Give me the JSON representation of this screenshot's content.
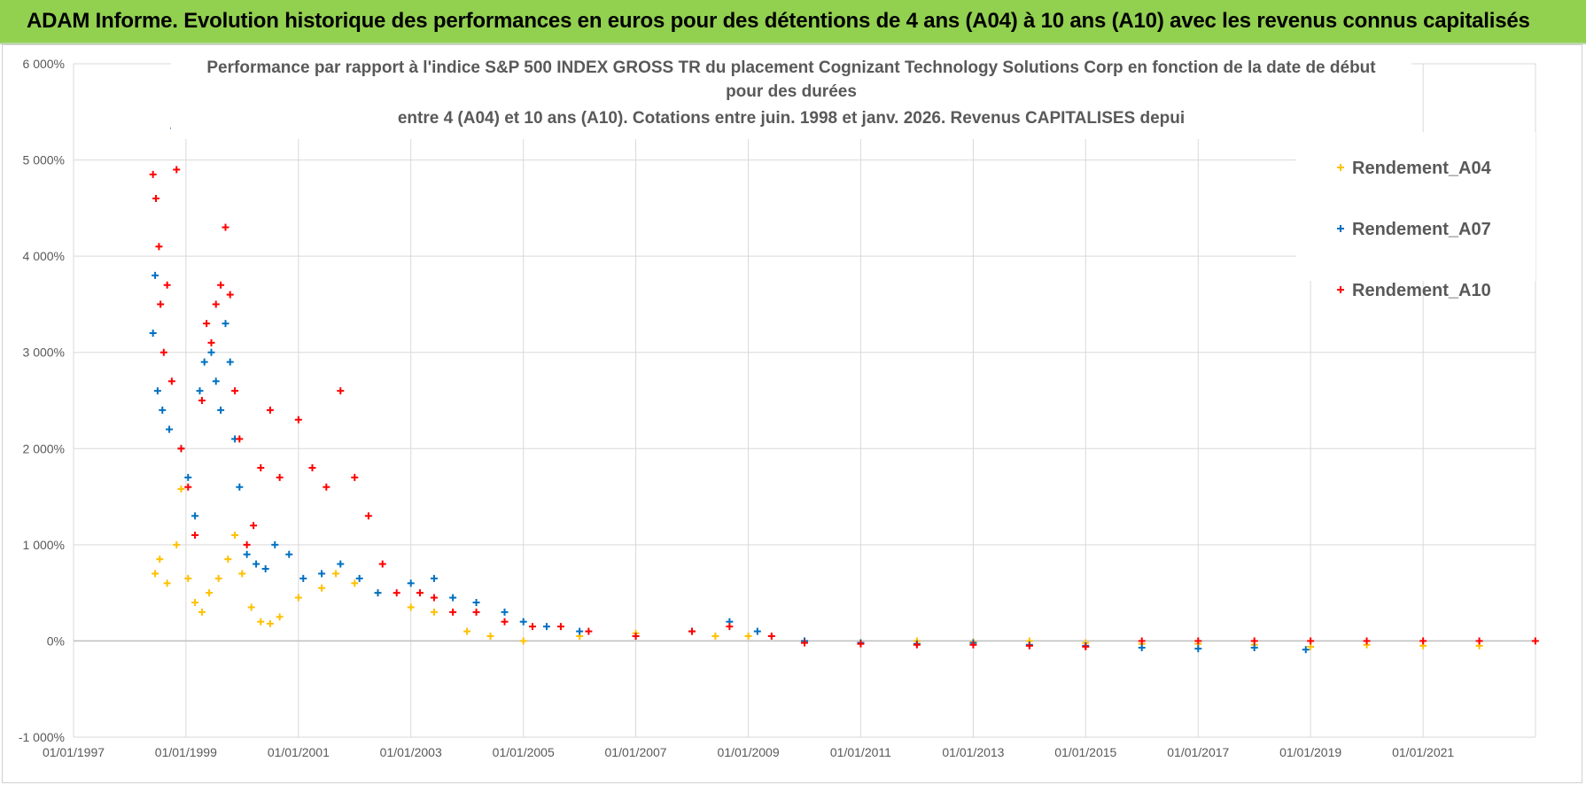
{
  "banner": {
    "title": "ADAM Informe. Evolution historique des performances en euros pour des détentions de 4 ans (A04) à 10 ans (A10) avec les revenus connus capitalisés"
  },
  "colors": {
    "banner": "#92d050",
    "A04": "#ffc000",
    "A07": "#0070c0",
    "A10": "#ff0000",
    "grid": "#d9d9d9",
    "text": "#595959"
  },
  "chart_data": {
    "type": "scatter",
    "title_lines": [
      "Performance par rapport à l'indice S&P 500 INDEX GROSS TR  du placement Cognizant Technology Solutions Corp en fonction de la date de début",
      "pour des durées",
      "entre 4 (A04) et 10 ans (A10). Cotations entre juin. 1998 et janv. 2026. Revenus CAPITALISES depui"
    ],
    "xlabel": "",
    "ylabel": "",
    "x_tick_labels": [
      "01/01/1997",
      "01/01/1999",
      "01/01/2001",
      "01/01/2003",
      "01/01/2005",
      "01/01/2007",
      "01/01/2009",
      "01/01/2011",
      "01/01/2013",
      "01/01/2015",
      "01/01/2017",
      "01/01/2019",
      "01/01/2021"
    ],
    "xlim": [
      "1997-01-01",
      "2023-01-01"
    ],
    "y_tick_labels": [
      "-1 000%",
      "0%",
      "1 000%",
      "2 000%",
      "3 000%",
      "4 000%",
      "5 000%",
      "6 000%"
    ],
    "ylim": [
      -1000,
      6000
    ],
    "grid": true,
    "legend_position": "top-right",
    "marker": "+",
    "series": [
      {
        "name": "Rendement_A04",
        "color": "#ffc000",
        "points": [
          [
            "1998-06-15",
            700
          ],
          [
            "1998-07-15",
            850
          ],
          [
            "1998-09-01",
            600
          ],
          [
            "1998-11-01",
            1000
          ],
          [
            "1998-12-01",
            1580
          ],
          [
            "1999-01-15",
            650
          ],
          [
            "1999-03-01",
            400
          ],
          [
            "1999-04-15",
            300
          ],
          [
            "1999-06-01",
            500
          ],
          [
            "1999-08-01",
            650
          ],
          [
            "1999-10-01",
            850
          ],
          [
            "1999-11-15",
            1100
          ],
          [
            "2000-01-01",
            700
          ],
          [
            "2000-03-01",
            350
          ],
          [
            "2000-05-01",
            200
          ],
          [
            "2000-07-01",
            180
          ],
          [
            "2000-09-01",
            250
          ],
          [
            "2001-01-01",
            450
          ],
          [
            "2001-06-01",
            550
          ],
          [
            "2001-09-01",
            700
          ],
          [
            "2002-01-01",
            600
          ],
          [
            "2002-06-01",
            500
          ],
          [
            "2003-01-01",
            350
          ],
          [
            "2003-06-01",
            300
          ],
          [
            "2004-01-01",
            100
          ],
          [
            "2004-06-01",
            50
          ],
          [
            "2005-01-01",
            0
          ],
          [
            "2006-01-01",
            50
          ],
          [
            "2007-01-01",
            80
          ],
          [
            "2008-01-01",
            100
          ],
          [
            "2008-06-01",
            50
          ],
          [
            "2009-01-01",
            50
          ],
          [
            "2010-01-01",
            0
          ],
          [
            "2011-01-01",
            -20
          ],
          [
            "2012-01-01",
            0
          ],
          [
            "2013-01-01",
            -10
          ],
          [
            "2014-01-01",
            0
          ],
          [
            "2015-01-01",
            -20
          ],
          [
            "2016-01-01",
            -30
          ],
          [
            "2017-01-01",
            -30
          ],
          [
            "2018-01-01",
            -40
          ],
          [
            "2019-01-01",
            -60
          ],
          [
            "2020-01-01",
            -40
          ],
          [
            "2021-01-01",
            -50
          ],
          [
            "2022-01-01",
            -50
          ]
        ]
      },
      {
        "name": "Rendement_A07",
        "color": "#0070c0",
        "points": [
          [
            "1998-06-01",
            3200
          ],
          [
            "1998-06-15",
            3800
          ],
          [
            "1998-07-01",
            2600
          ],
          [
            "1998-08-01",
            2400
          ],
          [
            "1998-09-15",
            2200
          ],
          [
            "1998-10-15",
            5330
          ],
          [
            "1998-12-01",
            2000
          ],
          [
            "1999-01-15",
            1700
          ],
          [
            "1999-03-01",
            1300
          ],
          [
            "1999-04-01",
            2600
          ],
          [
            "1999-05-01",
            2900
          ],
          [
            "1999-06-15",
            3000
          ],
          [
            "1999-07-15",
            2700
          ],
          [
            "1999-08-15",
            2400
          ],
          [
            "1999-09-15",
            3300
          ],
          [
            "1999-10-15",
            2900
          ],
          [
            "1999-11-15",
            2100
          ],
          [
            "1999-12-15",
            1600
          ],
          [
            "2000-02-01",
            900
          ],
          [
            "2000-04-01",
            800
          ],
          [
            "2000-06-01",
            750
          ],
          [
            "2000-08-01",
            1000
          ],
          [
            "2000-11-01",
            900
          ],
          [
            "2001-02-01",
            650
          ],
          [
            "2001-06-01",
            700
          ],
          [
            "2001-10-01",
            800
          ],
          [
            "2002-02-01",
            650
          ],
          [
            "2002-06-01",
            500
          ],
          [
            "2003-01-01",
            600
          ],
          [
            "2003-06-01",
            650
          ],
          [
            "2003-10-01",
            450
          ],
          [
            "2004-03-01",
            400
          ],
          [
            "2004-09-01",
            300
          ],
          [
            "2005-01-01",
            200
          ],
          [
            "2005-06-01",
            150
          ],
          [
            "2006-01-01",
            100
          ],
          [
            "2007-01-01",
            50
          ],
          [
            "2008-01-01",
            100
          ],
          [
            "2008-09-01",
            200
          ],
          [
            "2009-03-01",
            100
          ],
          [
            "2010-01-01",
            0
          ],
          [
            "2011-01-01",
            -20
          ],
          [
            "2012-01-01",
            -30
          ],
          [
            "2013-01-01",
            -20
          ],
          [
            "2014-01-01",
            -40
          ],
          [
            "2015-01-01",
            -50
          ],
          [
            "2016-01-01",
            -70
          ],
          [
            "2017-01-01",
            -80
          ],
          [
            "2018-01-01",
            -70
          ],
          [
            "2018-12-01",
            -90
          ]
        ]
      },
      {
        "name": "Rendement_A10",
        "color": "#ff0000",
        "points": [
          [
            "1998-06-01",
            4850
          ],
          [
            "1998-06-20",
            4600
          ],
          [
            "1998-07-10",
            4100
          ],
          [
            "1998-07-20",
            3500
          ],
          [
            "1998-08-10",
            3000
          ],
          [
            "1998-09-01",
            3700
          ],
          [
            "1998-10-01",
            2700
          ],
          [
            "1998-11-01",
            4900
          ],
          [
            "1998-12-01",
            2000
          ],
          [
            "1999-01-15",
            1600
          ],
          [
            "1999-03-01",
            1100
          ],
          [
            "1999-04-15",
            2500
          ],
          [
            "1999-05-15",
            3300
          ],
          [
            "1999-06-15",
            3100
          ],
          [
            "1999-07-15",
            3500
          ],
          [
            "1999-08-15",
            3700
          ],
          [
            "1999-09-15",
            4300
          ],
          [
            "1999-10-15",
            3600
          ],
          [
            "1999-11-15",
            2600
          ],
          [
            "1999-12-15",
            2100
          ],
          [
            "2000-02-01",
            1000
          ],
          [
            "2000-03-15",
            1200
          ],
          [
            "2000-05-01",
            1800
          ],
          [
            "2000-07-01",
            2400
          ],
          [
            "2000-09-01",
            1700
          ],
          [
            "2001-01-01",
            2300
          ],
          [
            "2001-04-01",
            1800
          ],
          [
            "2001-07-01",
            1600
          ],
          [
            "2001-10-01",
            2600
          ],
          [
            "2002-01-01",
            1700
          ],
          [
            "2002-04-01",
            1300
          ],
          [
            "2002-07-01",
            800
          ],
          [
            "2002-10-01",
            500
          ],
          [
            "2003-03-01",
            500
          ],
          [
            "2003-06-01",
            450
          ],
          [
            "2003-10-01",
            300
          ],
          [
            "2004-03-01",
            300
          ],
          [
            "2004-09-01",
            200
          ],
          [
            "2005-03-01",
            150
          ],
          [
            "2005-09-01",
            150
          ],
          [
            "2006-03-01",
            100
          ],
          [
            "2007-01-01",
            50
          ],
          [
            "2008-01-01",
            100
          ],
          [
            "2008-09-01",
            150
          ],
          [
            "2009-06-01",
            50
          ],
          [
            "2010-01-01",
            -20
          ],
          [
            "2011-01-01",
            -30
          ],
          [
            "2012-01-01",
            -40
          ],
          [
            "2013-01-01",
            -40
          ],
          [
            "2014-01-01",
            -50
          ],
          [
            "2015-01-01",
            -60
          ],
          [
            "2016-01-01",
            0
          ],
          [
            "2017-01-01",
            0
          ],
          [
            "2018-01-01",
            0
          ],
          [
            "2019-01-01",
            0
          ],
          [
            "2020-01-01",
            0
          ],
          [
            "2021-01-01",
            0
          ],
          [
            "2022-01-01",
            0
          ],
          [
            "2022-12-31",
            0
          ]
        ]
      }
    ]
  }
}
